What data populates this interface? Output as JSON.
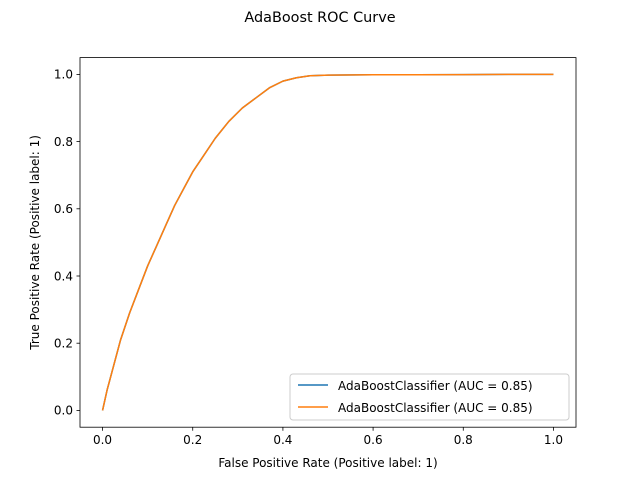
{
  "chart_data": {
    "type": "line",
    "title": "AdaBoost ROC Curve",
    "xlabel": "False Positive Rate (Positive label: 1)",
    "ylabel": "True Positive Rate (Positive label: 1)",
    "xlim": [
      -0.05,
      1.05
    ],
    "ylim": [
      -0.05,
      1.05
    ],
    "xticks": [
      "0.0",
      "0.2",
      "0.4",
      "0.6",
      "0.8",
      "1.0"
    ],
    "yticks": [
      "0.0",
      "0.2",
      "0.4",
      "0.6",
      "0.8",
      "1.0"
    ],
    "grid": false,
    "legend_position": "lower-right",
    "series": [
      {
        "name": "AdaBoostClassifier (AUC = 0.85)",
        "color": "#1f77b4",
        "x": [
          0.0,
          0.01,
          0.02,
          0.04,
          0.06,
          0.08,
          0.1,
          0.12,
          0.14,
          0.16,
          0.18,
          0.2,
          0.22,
          0.25,
          0.28,
          0.31,
          0.34,
          0.37,
          0.4,
          0.43,
          0.46,
          0.5,
          0.6,
          0.7,
          0.8,
          0.9,
          1.0
        ],
        "y": [
          0.0,
          0.06,
          0.11,
          0.21,
          0.29,
          0.36,
          0.43,
          0.49,
          0.55,
          0.61,
          0.66,
          0.71,
          0.75,
          0.81,
          0.86,
          0.9,
          0.93,
          0.96,
          0.98,
          0.99,
          0.996,
          0.998,
          0.999,
          0.999,
          0.9995,
          1.0,
          1.0
        ]
      },
      {
        "name": "AdaBoostClassifier (AUC = 0.85)",
        "color": "#ff7f0e",
        "x": [
          0.0,
          0.01,
          0.02,
          0.04,
          0.06,
          0.08,
          0.1,
          0.12,
          0.14,
          0.16,
          0.18,
          0.2,
          0.22,
          0.25,
          0.28,
          0.31,
          0.34,
          0.37,
          0.4,
          0.43,
          0.46,
          0.5,
          0.6,
          0.7,
          0.8,
          0.9,
          1.0
        ],
        "y": [
          0.0,
          0.06,
          0.11,
          0.21,
          0.29,
          0.36,
          0.43,
          0.49,
          0.55,
          0.61,
          0.66,
          0.71,
          0.75,
          0.81,
          0.86,
          0.9,
          0.93,
          0.96,
          0.98,
          0.99,
          0.996,
          0.998,
          0.999,
          0.999,
          0.9995,
          1.0,
          1.0
        ]
      }
    ]
  }
}
